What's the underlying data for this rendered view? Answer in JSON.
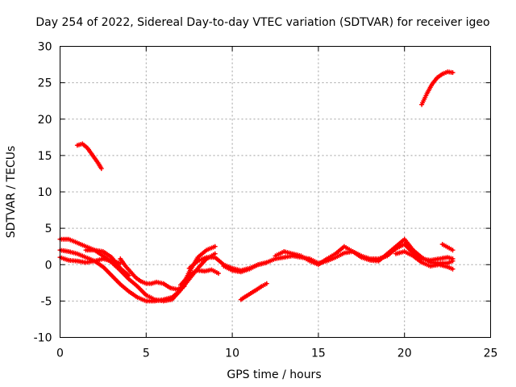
{
  "chart_data": {
    "type": "scatter",
    "title": "Day 254 of 2022, Sidereal Day-to-day VTEC variation (SDTVAR) for receiver igeo",
    "xlabel": "GPS time / hours",
    "ylabel": "SDTVAR / TECUs",
    "xlim": [
      0,
      25
    ],
    "ylim": [
      -10,
      30
    ],
    "xticks": [
      0,
      5,
      10,
      15,
      20,
      25
    ],
    "yticks": [
      -10,
      -5,
      0,
      5,
      10,
      15,
      20,
      25,
      30
    ],
    "grid": true,
    "marker": "+",
    "color": "#ff0000",
    "series": [
      {
        "name": "arc-1",
        "x": [
          1.0,
          1.3,
          1.6,
          1.9,
          2.2,
          2.4
        ],
        "y": [
          16.4,
          16.6,
          16.0,
          15.0,
          14.0,
          13.2
        ]
      },
      {
        "name": "arc-2",
        "x": [
          21.0,
          21.3,
          21.6,
          21.9,
          22.2,
          22.5,
          22.8
        ],
        "y": [
          22.0,
          23.5,
          24.8,
          25.7,
          26.2,
          26.5,
          26.4
        ]
      },
      {
        "name": "arc-3",
        "x": [
          10.5,
          10.9,
          11.3,
          11.7,
          12.0
        ],
        "y": [
          -4.8,
          -4.2,
          -3.6,
          -3.0,
          -2.6
        ]
      },
      {
        "name": "arc-4",
        "x": [
          0.0,
          0.5,
          1.0,
          1.5,
          2.0,
          2.5,
          3.0,
          3.5,
          4.0,
          4.5,
          5.0,
          5.5,
          6.0,
          6.5,
          7.0,
          7.5,
          8.0,
          8.5,
          9.0
        ],
        "y": [
          3.5,
          3.5,
          3.0,
          2.5,
          2.0,
          1.2,
          0.3,
          -0.8,
          -2.0,
          -3.0,
          -4.2,
          -4.8,
          -5.0,
          -4.8,
          -3.5,
          -1.0,
          1.0,
          2.0,
          2.5
        ]
      },
      {
        "name": "arc-5",
        "x": [
          0.0,
          0.5,
          1.0,
          1.5,
          2.0,
          2.5,
          3.0,
          3.5,
          4.0,
          4.5,
          5.0,
          5.5,
          6.0,
          6.5,
          7.0,
          7.5,
          8.0,
          8.5,
          9.0
        ],
        "y": [
          2.0,
          1.8,
          1.5,
          1.0,
          0.5,
          -0.3,
          -1.5,
          -2.7,
          -3.7,
          -4.5,
          -5.0,
          -5.0,
          -4.8,
          -4.5,
          -3.5,
          -2.0,
          -0.5,
          0.8,
          1.5
        ]
      },
      {
        "name": "arc-6",
        "x": [
          0.0,
          0.5,
          1.0,
          1.5,
          2.0,
          2.5,
          3.0,
          3.5
        ],
        "y": [
          1.0,
          0.6,
          0.5,
          0.3,
          0.5,
          0.8,
          0.5,
          0.2
        ]
      },
      {
        "name": "arc-7",
        "x": [
          1.5,
          2.0,
          2.5,
          3.0,
          3.5,
          4.0
        ],
        "y": [
          2.0,
          2.0,
          1.8,
          1.0,
          -0.5,
          -1.5
        ]
      },
      {
        "name": "arc-8",
        "x": [
          3.5,
          3.8,
          4.1,
          4.4,
          4.7,
          5.0,
          5.3,
          5.6,
          6.0,
          6.4,
          6.8,
          7.2
        ],
        "y": [
          0.8,
          -0.2,
          -1.0,
          -1.8,
          -2.3,
          -2.6,
          -2.6,
          -2.4,
          -2.6,
          -3.2,
          -3.4,
          -3.0
        ]
      },
      {
        "name": "arc-9",
        "x": [
          7.0,
          7.3,
          7.6,
          8.0,
          8.4,
          8.8,
          9.2
        ],
        "y": [
          -2.8,
          -2.0,
          -1.2,
          -0.8,
          -0.9,
          -0.7,
          -1.2
        ]
      },
      {
        "name": "arc-10",
        "x": [
          7.5,
          8.0,
          8.5,
          9.0,
          9.5,
          10.0,
          10.5,
          11.0,
          11.5,
          12.0
        ],
        "y": [
          -0.5,
          0.5,
          1.0,
          1.0,
          0.0,
          -0.5,
          -0.8,
          -0.5,
          0.0,
          0.3
        ]
      },
      {
        "name": "arc-11",
        "x": [
          9.5,
          10.0,
          10.5,
          11.0,
          11.5,
          12.0,
          12.5,
          13.0,
          13.5,
          14.0,
          14.5,
          15.0,
          15.5,
          16.0,
          16.5,
          17.0,
          17.5,
          18.0,
          18.5,
          19.0,
          19.5,
          20.0,
          20.5,
          21.0,
          21.5,
          22.0,
          22.5,
          22.8
        ],
        "y": [
          -0.2,
          -0.8,
          -1.0,
          -0.6,
          0.0,
          0.3,
          0.8,
          1.0,
          1.2,
          1.0,
          0.8,
          0.2,
          0.5,
          1.0,
          1.6,
          1.8,
          1.2,
          0.8,
          0.8,
          1.2,
          2.2,
          2.8,
          1.6,
          0.8,
          0.6,
          0.8,
          1.0,
          0.8
        ]
      },
      {
        "name": "arc-12",
        "x": [
          12.5,
          13.0,
          13.5,
          14.0,
          14.5,
          15.0,
          15.5,
          16.0,
          16.5,
          17.0,
          17.5,
          18.0,
          18.5,
          19.0,
          19.5,
          20.0,
          20.5,
          21.0,
          21.5,
          22.0,
          22.5,
          22.8
        ],
        "y": [
          1.2,
          1.8,
          1.5,
          1.2,
          0.5,
          0.0,
          0.8,
          1.5,
          2.5,
          1.8,
          1.0,
          0.6,
          0.5,
          1.5,
          2.5,
          3.5,
          2.0,
          1.0,
          0.3,
          0.2,
          0.2,
          0.5
        ]
      },
      {
        "name": "arc-13",
        "x": [
          19.5,
          20.0,
          20.5,
          21.0,
          21.5,
          22.0,
          22.5,
          22.8
        ],
        "y": [
          1.5,
          1.8,
          1.2,
          0.3,
          -0.2,
          0.0,
          -0.3,
          -0.6
        ]
      },
      {
        "name": "arc-14",
        "x": [
          22.2,
          22.5,
          22.8
        ],
        "y": [
          2.8,
          2.4,
          2.0
        ]
      }
    ]
  }
}
